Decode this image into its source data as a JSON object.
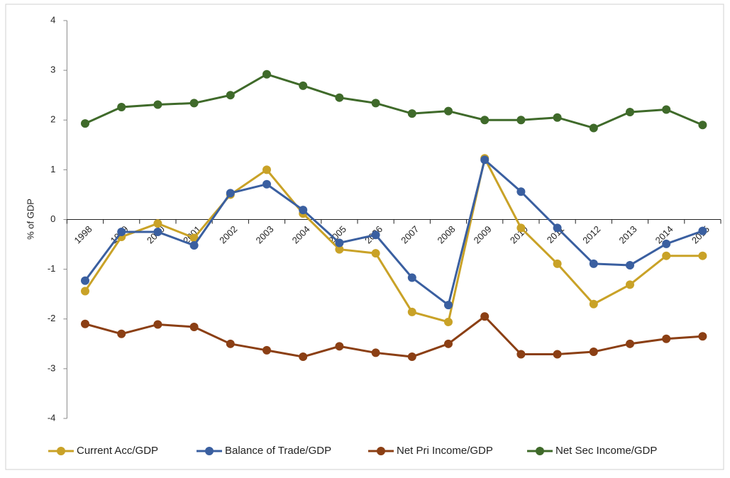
{
  "chart_data": {
    "type": "line",
    "y_label": "% of GDP",
    "categories": [
      "1998",
      "1999",
      "2000",
      "2001",
      "2002",
      "2003",
      "2004",
      "2005",
      "2006",
      "2007",
      "2008",
      "2009",
      "2010",
      "2011",
      "2012",
      "2013",
      "2014",
      "2015"
    ],
    "series": [
      {
        "name": "Current Acc/GDP",
        "color": "#c9a227",
        "values": [
          -1.44,
          -0.35,
          -0.08,
          -0.37,
          0.5,
          1.0,
          0.12,
          -0.6,
          -0.68,
          -1.86,
          -2.06,
          1.23,
          -0.17,
          -0.89,
          -1.7,
          -1.31,
          -0.73,
          -0.73
        ]
      },
      {
        "name": "Balance of Trade/GDP",
        "color": "#3a5fa0",
        "values": [
          -1.23,
          -0.25,
          -0.25,
          -0.52,
          0.53,
          0.71,
          0.19,
          -0.47,
          -0.31,
          -1.17,
          -1.72,
          1.2,
          0.56,
          -0.17,
          -0.89,
          -0.92,
          -0.49,
          -0.23
        ]
      },
      {
        "name": "Net Pri Income/GDP",
        "color": "#8b3f14",
        "values": [
          -2.1,
          -2.3,
          -2.11,
          -2.16,
          -2.5,
          -2.63,
          -2.76,
          -2.55,
          -2.68,
          -2.76,
          -2.5,
          -1.95,
          -2.71,
          -2.71,
          -2.66,
          -2.5,
          -2.4,
          -2.35
        ]
      },
      {
        "name": "Net Sec Income/GDP",
        "color": "#3f6a2a",
        "values": [
          1.93,
          2.26,
          2.31,
          2.34,
          2.5,
          2.92,
          2.69,
          2.45,
          2.34,
          2.13,
          2.18,
          2.0,
          2.0,
          2.05,
          1.84,
          2.16,
          2.21,
          1.9
        ]
      }
    ],
    "ylim": [
      -4,
      4
    ],
    "yticks": [
      -4,
      -3,
      -2,
      -1,
      0,
      1,
      2,
      3,
      4
    ],
    "grid": false,
    "legend": "bottom"
  }
}
